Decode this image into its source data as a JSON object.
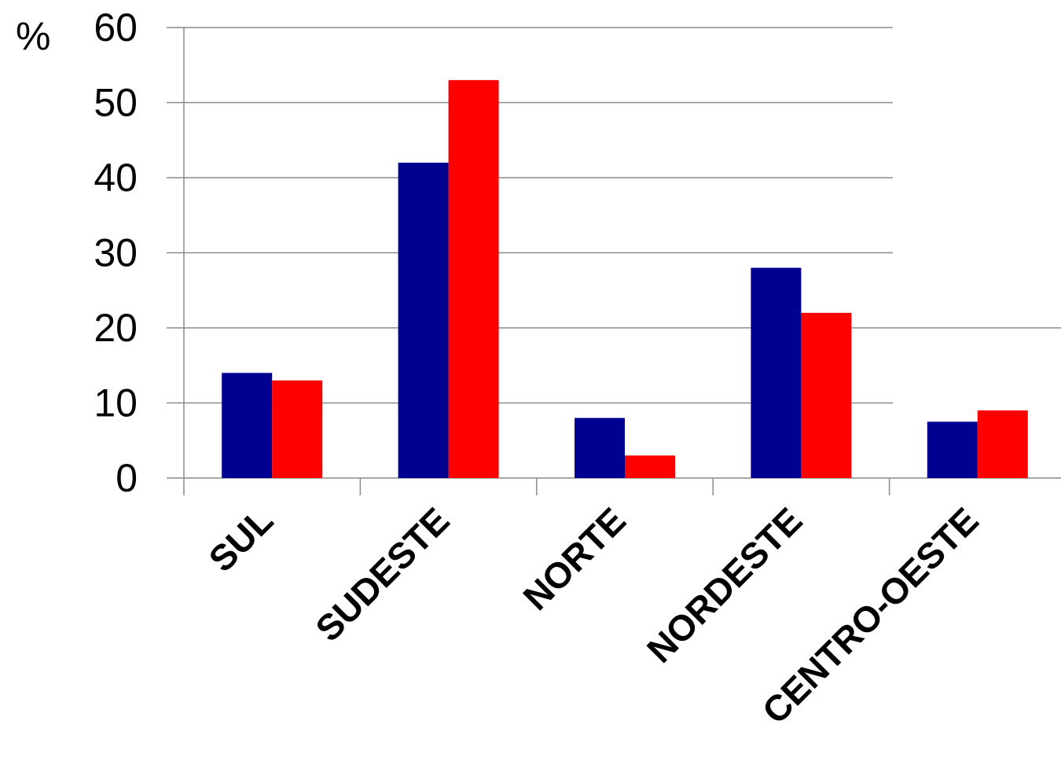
{
  "chart_data": {
    "type": "bar",
    "categories": [
      "SUL",
      "SUDESTE",
      "NORTE",
      "NORDESTE",
      "CENTRO-OESTE"
    ],
    "series": [
      {
        "values": [
          14,
          42,
          8,
          28,
          7.5
        ],
        "color": "#000090"
      },
      {
        "values": [
          13,
          53,
          3,
          22,
          9
        ],
        "color": "#ff0000"
      }
    ],
    "ylabel": "%",
    "ylim": [
      0,
      60
    ],
    "yticks": [
      0,
      10,
      20,
      30,
      40,
      50,
      60
    ],
    "grid": true,
    "legend": "none"
  }
}
